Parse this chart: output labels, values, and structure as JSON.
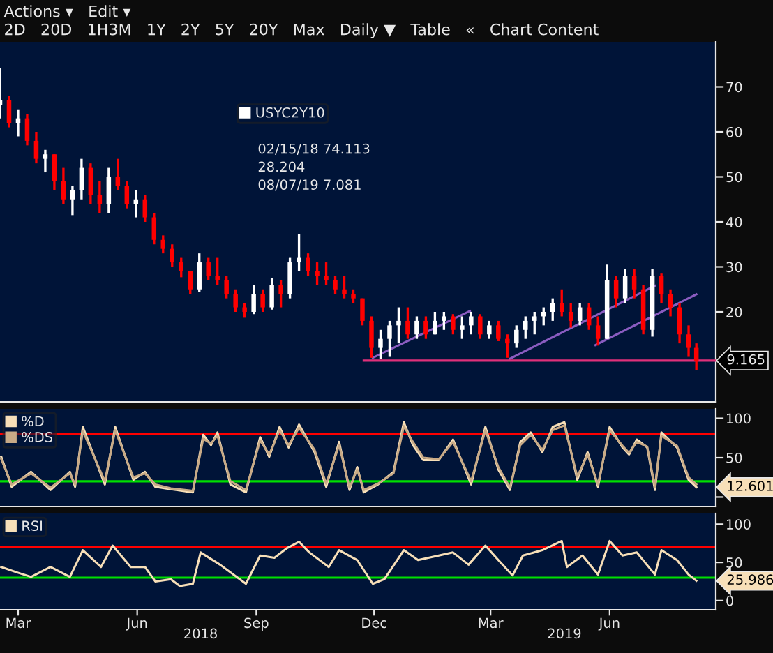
{
  "chart_data": [
    {
      "type": "candlestick",
      "title": "Actions ▾   Edit ▾",
      "subtitle": "2D   20D   1H3M   1Y   2Y   5Y   20Y   Max   Daily ▼   Table   «   Chart Content",
      "xlim": [
        "2018-02-15",
        "2019-08-22"
      ],
      "ylim": [
        0,
        80
      ],
      "yticks": [
        20,
        30,
        40,
        50,
        60,
        70
      ],
      "tick_labels": "y",
      "legend": "top",
      "grid": false,
      "series": [
        {
          "name": "USYC2Y10",
          "type": "candlestick",
          "x": [
            "2018-02-15",
            "2018-02-22",
            "2018-03-01",
            "2018-03-08",
            "2018-03-15",
            "2018-03-22",
            "2018-03-29",
            "2018-04-05",
            "2018-04-12",
            "2018-04-19",
            "2018-04-26",
            "2018-05-03",
            "2018-05-10",
            "2018-05-17",
            "2018-05-24",
            "2018-05-31",
            "2018-06-07",
            "2018-06-14",
            "2018-06-21",
            "2018-06-28",
            "2018-07-05",
            "2018-07-12",
            "2018-07-19",
            "2018-07-26",
            "2018-08-02",
            "2018-08-09",
            "2018-08-16",
            "2018-08-23",
            "2018-08-30",
            "2018-09-06",
            "2018-09-13",
            "2018-09-20",
            "2018-09-27",
            "2018-10-04",
            "2018-10-11",
            "2018-10-18",
            "2018-10-25",
            "2018-11-01",
            "2018-11-08",
            "2018-11-15",
            "2018-11-22",
            "2018-11-29",
            "2018-12-06",
            "2018-12-13",
            "2018-12-20",
            "2018-12-27",
            "2019-01-03",
            "2019-01-10",
            "2019-01-17",
            "2019-01-24",
            "2019-01-31",
            "2019-02-07",
            "2019-02-14",
            "2019-02-21",
            "2019-02-28",
            "2019-03-07",
            "2019-03-14",
            "2019-03-21",
            "2019-03-28",
            "2019-04-04",
            "2019-04-11",
            "2019-04-18",
            "2019-04-25",
            "2019-05-02",
            "2019-05-09",
            "2019-05-16",
            "2019-05-23",
            "2019-05-30",
            "2019-06-06",
            "2019-06-13",
            "2019-06-20",
            "2019-06-27",
            "2019-07-04",
            "2019-07-11",
            "2019-07-18",
            "2019-07-25",
            "2019-08-01",
            "2019-08-07"
          ],
          "ohlc": [
            [
              66,
              74.113,
              63,
              67
            ],
            [
              67,
              68,
              61,
              62
            ],
            [
              62,
              65,
              59,
              63
            ],
            [
              63,
              64,
              57,
              58
            ],
            [
              58,
              60,
              53,
              54
            ],
            [
              54,
              56,
              51,
              55
            ],
            [
              55,
              55,
              47,
              49
            ],
            [
              49,
              52,
              44,
              45
            ],
            [
              45,
              48,
              41.5,
              47
            ],
            [
              47,
              54,
              45,
              52
            ],
            [
              52,
              53,
              44,
              46
            ],
            [
              46,
              49,
              42,
              44
            ],
            [
              44,
              52,
              42,
              50
            ],
            [
              50,
              54,
              47,
              48
            ],
            [
              48,
              49,
              43,
              44
            ],
            [
              44,
              47,
              41,
              45
            ],
            [
              45,
              46,
              40,
              41
            ],
            [
              41,
              42,
              35,
              36
            ],
            [
              36,
              37,
              33,
              34
            ],
            [
              34,
              35,
              30,
              31
            ],
            [
              31,
              32,
              27.7,
              29
            ],
            [
              29,
              29,
              24,
              25
            ],
            [
              25,
              33,
              24.5,
              31
            ],
            [
              31,
              32,
              27,
              28
            ],
            [
              28,
              32,
              26,
              27
            ],
            [
              27,
              28,
              23,
              24
            ],
            [
              24,
              25,
              20,
              21
            ],
            [
              21,
              22,
              18.7,
              20
            ],
            [
              20,
              26,
              19.5,
              24
            ],
            [
              24,
              25,
              20,
              21
            ],
            [
              21,
              27.5,
              20.5,
              26
            ],
            [
              26,
              27,
              21,
              24
            ],
            [
              24,
              32,
              23,
              31
            ],
            [
              31,
              37.3,
              29,
              32
            ],
            [
              32,
              33,
              28,
              29
            ],
            [
              29,
              31,
              26,
              28
            ],
            [
              28,
              31,
              26,
              27
            ],
            [
              27,
              28,
              24,
              25
            ],
            [
              25,
              28,
              23,
              24
            ],
            [
              24,
              25,
              22,
              23
            ],
            [
              23,
              23,
              17,
              18
            ],
            [
              18,
              19,
              9.8,
              12
            ],
            [
              12,
              16,
              9.5,
              14
            ],
            [
              14,
              18,
              10,
              17
            ],
            [
              17,
              21,
              13,
              18
            ],
            [
              18,
              21,
              14,
              15
            ],
            [
              15,
              19,
              14,
              18
            ],
            [
              18,
              19,
              14,
              15
            ],
            [
              15,
              20,
              15,
              18
            ],
            [
              18,
              20,
              16,
              19
            ],
            [
              19,
              19.5,
              15,
              16
            ],
            [
              16,
              19,
              14,
              17
            ],
            [
              17,
              20,
              15,
              19
            ],
            [
              19,
              19.5,
              14,
              15
            ],
            [
              15,
              18,
              14,
              17
            ],
            [
              17,
              18,
              13.5,
              14
            ],
            [
              14,
              15,
              9.8,
              13
            ],
            [
              13,
              17,
              12,
              16
            ],
            [
              16,
              19,
              14,
              18
            ],
            [
              18,
              20,
              15,
              19
            ],
            [
              19,
              21,
              17,
              20
            ],
            [
              20,
              23,
              18,
              22
            ],
            [
              22,
              25,
              19,
              20
            ],
            [
              20,
              22,
              16.5,
              18
            ],
            [
              18,
              22,
              17,
              21
            ],
            [
              21,
              22,
              16,
              17
            ],
            [
              17,
              19,
              12.5,
              14
            ],
            [
              14,
              30.5,
              14,
              27
            ],
            [
              27,
              28,
              21,
              23
            ],
            [
              23,
              29.5,
              22,
              28
            ],
            [
              28,
              29.5,
              23,
              25
            ],
            [
              25,
              26,
              15,
              16
            ],
            [
              16,
              29.5,
              14.5,
              28
            ],
            [
              28,
              28.5,
              22,
              24
            ],
            [
              24,
              25,
              19,
              21
            ],
            [
              21,
              22,
              13,
              15
            ],
            [
              15,
              17,
              10,
              12
            ],
            [
              12,
              13,
              7.081,
              9.165
            ]
          ],
          "colors": [
            "#ffffff",
            "#ff0000",
            "#ffffff",
            "#ff0000",
            "#ff0000",
            "#ffffff",
            "#ff0000",
            "#ff0000",
            "#ffffff",
            "#ffffff",
            "#ff0000",
            "#ff0000",
            "#ffffff",
            "#ff0000",
            "#ff0000",
            "#ffffff",
            "#ff0000",
            "#ff0000",
            "#ff0000",
            "#ff0000",
            "#ff0000",
            "#ff0000",
            "#ffffff",
            "#ff0000",
            "#ff0000",
            "#ff0000",
            "#ff0000",
            "#ff0000",
            "#ffffff",
            "#ff0000",
            "#ffffff",
            "#ff0000",
            "#ffffff",
            "#ffffff",
            "#ff0000",
            "#ff0000",
            "#ff0000",
            "#ff0000",
            "#ff0000",
            "#ff0000",
            "#ff0000",
            "#ff0000",
            "#ffffff",
            "#ffffff",
            "#ffffff",
            "#ff0000",
            "#ffffff",
            "#ff0000",
            "#ffffff",
            "#ffffff",
            "#ff0000",
            "#ffffff",
            "#ffffff",
            "#ff0000",
            "#ffffff",
            "#ff0000",
            "#ff0000",
            "#ffffff",
            "#ffffff",
            "#ffffff",
            "#ffffff",
            "#ffffff",
            "#ff0000",
            "#ff0000",
            "#ffffff",
            "#ff0000",
            "#ff0000",
            "#ffffff",
            "#ff0000",
            "#ffffff",
            "#ff0000",
            "#ff0000",
            "#ffffff",
            "#ff0000",
            "#ff0000",
            "#ff0000",
            "#ff0000",
            "#ff0000"
          ]
        },
        {
          "type": "line",
          "color": "#8a5cc0",
          "x": [
            "2018-11-30",
            "2019-02-13"
          ],
          "values": [
            9.8,
            20.2
          ]
        },
        {
          "type": "line",
          "color": "#8a5cc0",
          "x": [
            "2019-03-16",
            "2019-07-06"
          ],
          "values": [
            9.6,
            25.8
          ]
        },
        {
          "type": "line",
          "color": "#8a5cc0",
          "x": [
            "2019-05-21",
            "2019-08-07"
          ],
          "values": [
            12.6,
            23.9
          ]
        },
        {
          "type": "line",
          "color": "#e0307a",
          "x": [
            "2018-11-23",
            "2019-08-22"
          ],
          "values": [
            9.165,
            9.165
          ]
        }
      ],
      "annotations": [
        "02/15/18 74.113",
        "28.204",
        "08/07/19 7.081",
        {
          "text": "9.165",
          "x": "2019-08-07",
          "y": 9.165
        }
      ]
    },
    {
      "type": "line",
      "xlim": [
        "2018-02-15",
        "2019-08-22"
      ],
      "ylim": [
        -12,
        112
      ],
      "yticks": [
        {
          "value": 0,
          "label": null
        },
        50,
        100
      ],
      "tick_labels": "y",
      "legend": "left",
      "grid": false,
      "x": [
        "2018-02-16",
        "2018-02-24",
        "2018-03-11",
        "2018-03-26",
        "2018-04-10",
        "2018-04-14",
        "2018-04-20",
        "2018-05-07",
        "2018-05-15",
        "2018-05-29",
        "2018-06-07",
        "2018-06-15",
        "2018-06-27",
        "2018-07-14",
        "2018-07-22",
        "2018-07-28",
        "2018-08-02",
        "2018-08-12",
        "2018-08-24",
        "2018-09-04",
        "2018-09-11",
        "2018-09-19",
        "2018-09-26",
        "2018-10-04",
        "2018-10-16",
        "2018-10-25",
        "2018-11-04",
        "2018-11-12",
        "2018-11-18",
        "2018-11-23",
        "2018-12-04",
        "2018-12-16",
        "2018-12-24",
        "2018-12-31",
        "2019-01-08",
        "2019-01-20",
        "2019-01-31",
        "2019-02-14",
        "2019-02-25",
        "2019-03-07",
        "2019-03-16",
        "2019-03-24",
        "2019-04-01",
        "2019-04-10",
        "2019-04-18",
        "2019-04-27",
        "2019-05-07",
        "2019-05-15",
        "2019-05-23",
        "2019-06-01",
        "2019-06-11",
        "2019-06-16",
        "2019-06-22",
        "2019-06-30",
        "2019-07-06",
        "2019-07-11",
        "2019-07-23",
        "2019-08-01",
        "2019-08-07"
      ],
      "series": [
        {
          "name": "%D",
          "color": "#f7dfb8",
          "values": [
            51,
            13,
            32,
            9,
            32,
            13,
            89,
            16,
            89,
            22,
            32,
            13,
            10,
            6,
            79,
            66,
            82,
            16,
            6,
            76,
            51,
            89,
            63,
            92,
            57,
            13,
            70,
            9,
            38,
            6,
            16,
            32,
            95,
            66,
            47,
            47,
            73,
            16,
            89,
            35,
            9,
            70,
            82,
            57,
            89,
            95,
            22,
            57,
            13,
            89,
            63,
            54,
            73,
            63,
            9,
            82,
            63,
            22,
            12.6
          ]
        },
        {
          "name": "%DS",
          "color": "#c8aa86",
          "values": [
            48,
            16,
            30,
            12,
            30,
            16,
            84,
            20,
            85,
            25,
            30,
            16,
            11,
            8,
            74,
            68,
            78,
            20,
            9,
            72,
            54,
            85,
            66,
            88,
            60,
            17,
            66,
            12,
            35,
            9,
            17,
            30,
            90,
            70,
            50,
            48,
            70,
            20,
            85,
            38,
            12,
            66,
            79,
            60,
            85,
            91,
            26,
            54,
            16,
            85,
            65,
            56,
            70,
            64,
            13,
            78,
            65,
            25,
            16
          ]
        }
      ],
      "ref_lines": [
        {
          "axis": "y",
          "value": 80,
          "color": "#ff0000"
        },
        {
          "axis": "y",
          "value": 20,
          "color": "#00e000"
        }
      ],
      "annotations": [
        {
          "text": "12.601",
          "x": "2019-08-07",
          "y": 12.6
        }
      ]
    },
    {
      "type": "line",
      "xlim": [
        "2018-02-15",
        "2019-08-22"
      ],
      "ylim": [
        -12,
        114
      ],
      "yticks": [
        0,
        50,
        100
      ],
      "legend": "left",
      "grid": false,
      "xticks": [
        {
          "value": "2018-03-01",
          "label": "Mar"
        },
        {
          "value": "2018-06-01",
          "label": "Jun"
        },
        {
          "value": "2018-09-01",
          "label": "Sep"
        },
        {
          "value": "2018-12-01",
          "label": "Dec"
        },
        {
          "value": "2019-03-01",
          "label": "Mar"
        },
        {
          "value": "2019-06-01",
          "label": "Jun"
        }
      ],
      "x2lim": [
        "2018-02-15",
        "2019-08-22"
      ],
      "x2ticks": [
        {
          "value": "2018-07-20",
          "label": "2018"
        },
        {
          "value": "2019-04-27",
          "label": "2019"
        }
      ],
      "x": [
        "2018-02-16",
        "2018-02-28",
        "2018-03-11",
        "2018-03-26",
        "2018-04-10",
        "2018-04-20",
        "2018-05-04",
        "2018-05-13",
        "2018-05-27",
        "2018-06-07",
        "2018-06-15",
        "2018-06-27",
        "2018-07-04",
        "2018-07-14",
        "2018-07-20",
        "2018-08-04",
        "2018-08-24",
        "2018-09-04",
        "2018-09-15",
        "2018-09-25",
        "2018-10-04",
        "2018-10-12",
        "2018-10-27",
        "2018-11-04",
        "2018-11-18",
        "2018-11-30",
        "2018-12-09",
        "2018-12-24",
        "2019-01-04",
        "2019-01-20",
        "2019-01-31",
        "2019-02-12",
        "2019-02-25",
        "2019-03-07",
        "2019-03-18",
        "2019-03-26",
        "2019-04-10",
        "2019-04-25",
        "2019-04-29",
        "2019-05-11",
        "2019-05-23",
        "2019-06-01",
        "2019-06-11",
        "2019-06-22",
        "2019-07-06",
        "2019-07-11",
        "2019-07-23",
        "2019-08-01",
        "2019-08-07"
      ],
      "series": [
        {
          "name": "RSI",
          "color": "#f7dfb8",
          "values": [
            44,
            37,
            31,
            44,
            31,
            66,
            44,
            72,
            44,
            44,
            25,
            28,
            19,
            22,
            63,
            47,
            22,
            59,
            56,
            69,
            77,
            63,
            44,
            66,
            53,
            22,
            28,
            66,
            53,
            59,
            63,
            47,
            72,
            53,
            33,
            59,
            66,
            78,
            44,
            59,
            34,
            78,
            59,
            63,
            34,
            66,
            53,
            34,
            26
          ]
        }
      ],
      "ref_lines": [
        {
          "axis": "y",
          "value": 70,
          "color": "#ff0000"
        },
        {
          "axis": "y",
          "value": 30,
          "color": "#00e000"
        }
      ],
      "annotations": [
        {
          "text": "25.986",
          "x": "2019-08-07",
          "y": 26
        }
      ]
    }
  ]
}
